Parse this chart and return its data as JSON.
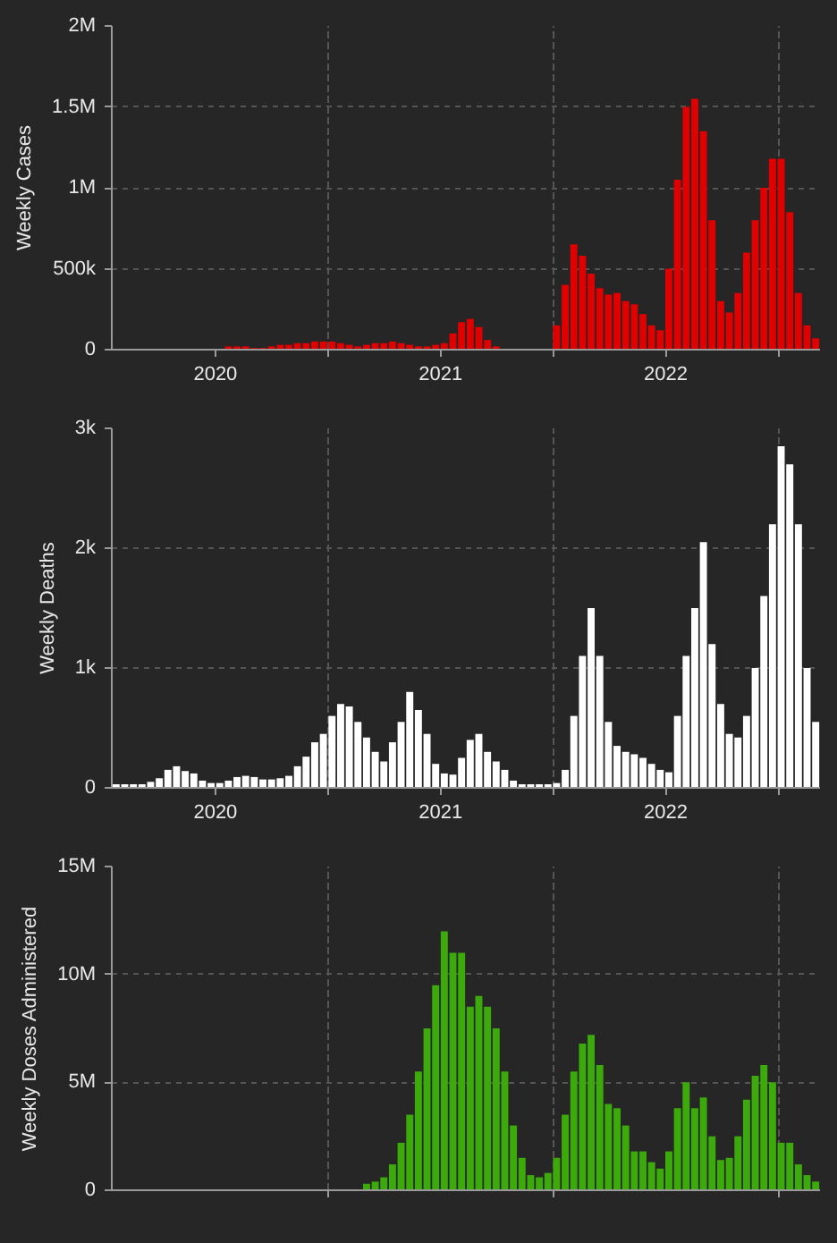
{
  "chart_data": [
    {
      "type": "bar",
      "ylabel": "Weekly Cases",
      "x": [
        "2020-01-23",
        "2020-02-06",
        "2020-02-20",
        "2020-03-05",
        "2020-03-19",
        "2020-04-02",
        "2020-04-16",
        "2020-04-30",
        "2020-05-14",
        "2020-05-28",
        "2020-06-11",
        "2020-06-25",
        "2020-07-09",
        "2020-07-23",
        "2020-08-06",
        "2020-08-20",
        "2020-09-03",
        "2020-09-17",
        "2020-10-01",
        "2020-10-15",
        "2020-10-29",
        "2020-11-12",
        "2020-11-26",
        "2020-12-10",
        "2020-12-24",
        "2021-01-07",
        "2021-01-21",
        "2021-02-04",
        "2021-02-18",
        "2021-03-04",
        "2021-03-18",
        "2021-04-01",
        "2021-04-15",
        "2021-04-29",
        "2021-05-13",
        "2021-05-27",
        "2021-06-10",
        "2021-06-24",
        "2021-07-08",
        "2021-07-22",
        "2021-08-05",
        "2021-08-19",
        "2021-09-02",
        "2021-09-16",
        "2021-09-30",
        "2021-10-14",
        "2021-10-28",
        "2021-11-11",
        "2021-11-25",
        "2021-12-09",
        "2021-12-23",
        "2022-01-06",
        "2022-01-20",
        "2022-02-03",
        "2022-02-17",
        "2022-03-03",
        "2022-03-17",
        "2022-03-31",
        "2022-04-14",
        "2022-04-28",
        "2022-05-12",
        "2022-05-26",
        "2022-06-09",
        "2022-06-23",
        "2022-07-07",
        "2022-07-21",
        "2022-08-04",
        "2022-08-18",
        "2022-09-01",
        "2022-09-15",
        "2022-09-29",
        "2022-10-13",
        "2022-10-27",
        "2022-11-10",
        "2022-11-24",
        "2022-12-08",
        "2022-12-22",
        "2023-01-05",
        "2023-01-19",
        "2023-02-02",
        "2023-02-16",
        "2023-03-02"
      ],
      "series": [
        {
          "color": "#e00000",
          "values": [
            0,
            0,
            0,
            0,
            0,
            0,
            0,
            0,
            0,
            0,
            0,
            0,
            0,
            20000,
            20000,
            20000,
            10000,
            10000,
            20000,
            30000,
            30000,
            40000,
            40000,
            50000,
            50000,
            50000,
            40000,
            30000,
            20000,
            30000,
            40000,
            40000,
            50000,
            40000,
            30000,
            20000,
            20000,
            30000,
            40000,
            100000,
            170000,
            190000,
            140000,
            60000,
            20000,
            0,
            0,
            0,
            0,
            0,
            0,
            150000,
            400000,
            650000,
            580000,
            470000,
            380000,
            340000,
            350000,
            300000,
            280000,
            220000,
            150000,
            120000,
            500000,
            1050000,
            1500000,
            1550000,
            1350000,
            800000,
            300000,
            230000,
            350000,
            600000,
            800000,
            1000000,
            1180000,
            1180000,
            850000,
            350000,
            150000,
            70000
          ]
        }
      ],
      "xlim": [
        "2020-01-16",
        "2023-03-09"
      ],
      "xticks": [
        {
          "value": "2020-07-02",
          "label": "2020"
        },
        {
          "value": "2021-01-01",
          "label": null
        },
        {
          "value": "2021-07-02",
          "label": "2021"
        },
        {
          "value": "2022-01-01",
          "label": null
        },
        {
          "value": "2022-07-02",
          "label": "2022"
        },
        {
          "value": "2023-01-01",
          "label": null
        }
      ],
      "ylim": [
        0,
        2000000
      ],
      "yticks": [
        {
          "value": 0,
          "label": "0"
        },
        {
          "value": 500000,
          "label": "500k"
        },
        {
          "value": 1000000,
          "label": "1M"
        },
        {
          "value": 1500000,
          "label": "1.5M"
        },
        {
          "value": 2000000,
          "label": "2M"
        }
      ],
      "grid": true
    },
    {
      "type": "bar",
      "ylabel": "Weekly Deaths",
      "x": [
        "2020-01-23",
        "2020-02-06",
        "2020-02-20",
        "2020-03-05",
        "2020-03-19",
        "2020-04-02",
        "2020-04-16",
        "2020-04-30",
        "2020-05-14",
        "2020-05-28",
        "2020-06-11",
        "2020-06-25",
        "2020-07-09",
        "2020-07-23",
        "2020-08-06",
        "2020-08-20",
        "2020-09-03",
        "2020-09-17",
        "2020-10-01",
        "2020-10-15",
        "2020-10-29",
        "2020-11-12",
        "2020-11-26",
        "2020-12-10",
        "2020-12-24",
        "2021-01-07",
        "2021-01-21",
        "2021-02-04",
        "2021-02-18",
        "2021-03-04",
        "2021-03-18",
        "2021-04-01",
        "2021-04-15",
        "2021-04-29",
        "2021-05-13",
        "2021-05-27",
        "2021-06-10",
        "2021-06-24",
        "2021-07-08",
        "2021-07-22",
        "2021-08-05",
        "2021-08-19",
        "2021-09-02",
        "2021-09-16",
        "2021-09-30",
        "2021-10-14",
        "2021-10-28",
        "2021-11-11",
        "2021-11-25",
        "2021-12-09",
        "2021-12-23",
        "2022-01-06",
        "2022-01-20",
        "2022-02-03",
        "2022-02-17",
        "2022-03-03",
        "2022-03-17",
        "2022-03-31",
        "2022-04-14",
        "2022-04-28",
        "2022-05-12",
        "2022-05-26",
        "2022-06-09",
        "2022-06-23",
        "2022-07-07",
        "2022-07-21",
        "2022-08-04",
        "2022-08-18",
        "2022-09-01",
        "2022-09-15",
        "2022-09-29",
        "2022-10-13",
        "2022-10-27",
        "2022-11-10",
        "2022-11-24",
        "2022-12-08",
        "2022-12-22",
        "2023-01-05",
        "2023-01-19",
        "2023-02-02",
        "2023-02-16",
        "2023-03-02"
      ],
      "series": [
        {
          "color": "#ffffff",
          "values": [
            30,
            30,
            30,
            30,
            50,
            80,
            150,
            180,
            140,
            120,
            60,
            40,
            40,
            60,
            90,
            100,
            90,
            70,
            70,
            80,
            100,
            180,
            260,
            380,
            450,
            600,
            700,
            680,
            550,
            420,
            300,
            220,
            380,
            550,
            800,
            650,
            450,
            200,
            120,
            110,
            250,
            400,
            450,
            300,
            220,
            150,
            60,
            30,
            30,
            30,
            30,
            40,
            150,
            600,
            1100,
            1500,
            1100,
            550,
            350,
            300,
            280,
            250,
            200,
            150,
            130,
            600,
            1100,
            1500,
            2050,
            1200,
            700,
            450,
            420,
            600,
            1000,
            1600,
            2200,
            2850,
            2700,
            2200,
            1000,
            550
          ]
        }
      ],
      "xlim": [
        "2020-01-16",
        "2023-03-09"
      ],
      "xticks": [
        {
          "value": "2020-07-02",
          "label": "2020"
        },
        {
          "value": "2021-01-01",
          "label": null
        },
        {
          "value": "2021-07-02",
          "label": "2021"
        },
        {
          "value": "2022-01-01",
          "label": null
        },
        {
          "value": "2022-07-02",
          "label": "2022"
        },
        {
          "value": "2023-01-01",
          "label": null
        }
      ],
      "ylim": [
        0,
        3000
      ],
      "yticks": [
        {
          "value": 0,
          "label": "0"
        },
        {
          "value": 1000,
          "label": "1k"
        },
        {
          "value": 2000,
          "label": "2k"
        },
        {
          "value": 3000,
          "label": "3k"
        }
      ],
      "grid": true
    },
    {
      "type": "bar",
      "ylabel": "Weekly Doses Administered",
      "x": [
        "2020-01-23",
        "2020-02-06",
        "2020-02-20",
        "2020-03-05",
        "2020-03-19",
        "2020-04-02",
        "2020-04-16",
        "2020-04-30",
        "2020-05-14",
        "2020-05-28",
        "2020-06-11",
        "2020-06-25",
        "2020-07-09",
        "2020-07-23",
        "2020-08-06",
        "2020-08-20",
        "2020-09-03",
        "2020-09-17",
        "2020-10-01",
        "2020-10-15",
        "2020-10-29",
        "2020-11-12",
        "2020-11-26",
        "2020-12-10",
        "2020-12-24",
        "2021-01-07",
        "2021-01-21",
        "2021-02-04",
        "2021-02-18",
        "2021-03-04",
        "2021-03-18",
        "2021-04-01",
        "2021-04-15",
        "2021-04-29",
        "2021-05-13",
        "2021-05-27",
        "2021-06-10",
        "2021-06-24",
        "2021-07-08",
        "2021-07-22",
        "2021-08-05",
        "2021-08-19",
        "2021-09-02",
        "2021-09-16",
        "2021-09-30",
        "2021-10-14",
        "2021-10-28",
        "2021-11-11",
        "2021-11-25",
        "2021-12-09",
        "2021-12-23",
        "2022-01-06",
        "2022-01-20",
        "2022-02-03",
        "2022-02-17",
        "2022-03-03",
        "2022-03-17",
        "2022-03-31",
        "2022-04-14",
        "2022-04-28",
        "2022-05-12",
        "2022-05-26",
        "2022-06-09",
        "2022-06-23",
        "2022-07-07",
        "2022-07-21",
        "2022-08-04",
        "2022-08-18",
        "2022-09-01",
        "2022-09-15",
        "2022-09-29",
        "2022-10-13",
        "2022-10-27",
        "2022-11-10",
        "2022-11-24",
        "2022-12-08",
        "2022-12-22",
        "2023-01-05",
        "2023-01-19",
        "2023-02-02",
        "2023-02-16",
        "2023-03-02"
      ],
      "series": [
        {
          "color": "#3caa0a",
          "values": [
            0,
            0,
            0,
            0,
            0,
            0,
            0,
            0,
            0,
            0,
            0,
            0,
            0,
            0,
            0,
            0,
            0,
            0,
            0,
            0,
            0,
            0,
            0,
            0,
            0,
            0,
            0,
            0,
            0,
            300000,
            400000,
            600000,
            1200000,
            2200000,
            3500000,
            5500000,
            7500000,
            9500000,
            12000000,
            11000000,
            11000000,
            8500000,
            9000000,
            8500000,
            7500000,
            5500000,
            3000000,
            1500000,
            700000,
            600000,
            800000,
            1500000,
            3500000,
            5500000,
            6800000,
            7200000,
            5800000,
            4000000,
            3800000,
            3000000,
            1800000,
            1800000,
            1300000,
            1000000,
            1800000,
            3800000,
            5000000,
            3800000,
            4300000,
            2500000,
            1400000,
            1500000,
            2500000,
            4200000,
            5300000,
            5800000,
            5000000,
            2200000,
            2200000,
            1200000,
            700000,
            400000
          ]
        }
      ],
      "xlim": [
        "2020-01-16",
        "2023-03-09"
      ],
      "xticks": [
        {
          "value": "2021-01-01",
          "label": null
        },
        {
          "value": "2022-01-01",
          "label": null
        },
        {
          "value": "2023-01-01",
          "label": null
        }
      ],
      "ylim": [
        0,
        15000000
      ],
      "yticks": [
        {
          "value": 0,
          "label": "0"
        },
        {
          "value": 5000000,
          "label": "5M"
        },
        {
          "value": 10000000,
          "label": "10M"
        },
        {
          "value": 15000000,
          "label": "15M"
        }
      ],
      "tick_labels": "y",
      "grid": true
    }
  ]
}
